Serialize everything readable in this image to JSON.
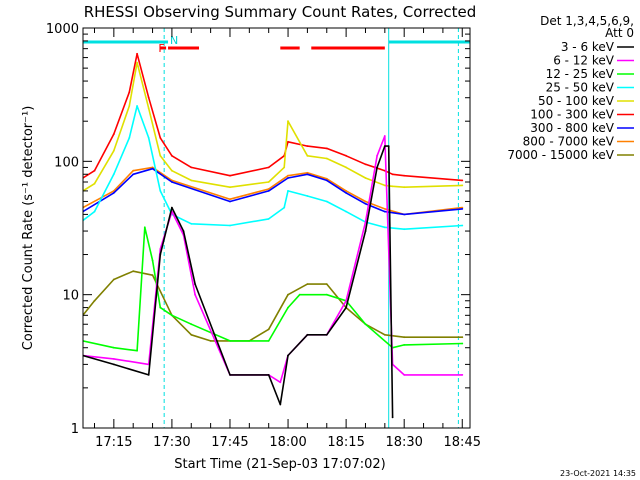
{
  "chart_data": {
    "type": "line",
    "title": "RHESSI Observing Summary Count Rates, Corrected",
    "xlabel": "Start Time (21-Sep-03 17:07:02)",
    "ylabel": "Corrected Count Rate (s⁻¹ detector⁻¹)",
    "ylim": [
      1,
      1000
    ],
    "yscale": "log",
    "xlim": [
      "17:07:02",
      "18:47:00"
    ],
    "x_tick_labels": [
      "17:15",
      "17:30",
      "17:45",
      "18:00",
      "18:15",
      "18:30",
      "18:45"
    ],
    "y_tick_labels": [
      "1",
      "10",
      "100",
      "1000"
    ],
    "legend_header": [
      "Det 1,3,4,5,6,9,",
      "Att 0"
    ],
    "legend_position": "right",
    "corner_date": "23-Oct-2021 14:35",
    "annotations": [
      {
        "text": "F",
        "color": "#ff0000"
      },
      {
        "text": "N",
        "color": "#00d0d0"
      }
    ],
    "series": [
      {
        "name": "3 - 6 keV",
        "color": "#000000",
        "x": [
          "17:07",
          "17:15",
          "17:24",
          "17:27",
          "17:30",
          "17:33",
          "17:36",
          "17:45",
          "17:55",
          "17:58",
          "18:00",
          "18:05",
          "18:10",
          "18:15",
          "18:20",
          "18:23",
          "18:25",
          "18:26",
          "18:27"
        ],
        "y": [
          3.5,
          3.0,
          2.5,
          20,
          45,
          30,
          12,
          2.5,
          2.5,
          1.5,
          3.5,
          5,
          5,
          8,
          30,
          90,
          130,
          130,
          1.2
        ]
      },
      {
        "name": "6 - 12 keV",
        "color": "#ff00ff",
        "x": [
          "17:07",
          "17:15",
          "17:24",
          "17:27",
          "17:30",
          "17:33",
          "17:36",
          "17:45",
          "17:55",
          "17:58",
          "18:00",
          "18:05",
          "18:10",
          "18:15",
          "18:20",
          "18:23",
          "18:25",
          "18:27",
          "18:30",
          "18:45"
        ],
        "y": [
          3.5,
          3.3,
          3.0,
          22,
          42,
          28,
          10,
          2.5,
          2.5,
          2.2,
          3.5,
          5,
          5,
          9,
          35,
          110,
          155,
          3,
          2.5,
          2.5
        ]
      },
      {
        "name": "12 - 25 keV",
        "color": "#00ff00",
        "x": [
          "17:07",
          "17:15",
          "17:21",
          "17:23",
          "17:25",
          "17:27",
          "17:30",
          "17:35",
          "17:45",
          "17:55",
          "18:00",
          "18:03",
          "18:10",
          "18:15",
          "18:20",
          "18:27",
          "18:30",
          "18:45"
        ],
        "y": [
          4.5,
          4.0,
          3.8,
          32,
          18,
          8,
          7,
          6,
          4.5,
          4.5,
          8,
          10,
          10,
          9,
          6,
          4,
          4.2,
          4.3
        ]
      },
      {
        "name": "25 - 50 keV",
        "color": "#00ffff",
        "x": [
          "17:07",
          "17:10",
          "17:15",
          "17:19",
          "17:21",
          "17:24",
          "17:27",
          "17:30",
          "17:35",
          "17:45",
          "17:55",
          "17:59",
          "18:00",
          "18:05",
          "18:10",
          "18:15",
          "18:20",
          "18:25",
          "18:30",
          "18:45"
        ],
        "y": [
          36,
          42,
          80,
          150,
          260,
          150,
          60,
          40,
          34,
          33,
          37,
          45,
          60,
          55,
          50,
          42,
          35,
          32,
          31,
          33
        ]
      },
      {
        "name": "50 - 100 keV",
        "color": "#e0e000",
        "x": [
          "17:07",
          "17:10",
          "17:15",
          "17:19",
          "17:21",
          "17:24",
          "17:27",
          "17:30",
          "17:35",
          "17:45",
          "17:55",
          "17:59",
          "18:00",
          "18:05",
          "18:10",
          "18:15",
          "18:20",
          "18:25",
          "18:27",
          "18:30",
          "18:45"
        ],
        "y": [
          60,
          68,
          120,
          260,
          550,
          250,
          110,
          85,
          72,
          64,
          70,
          90,
          200,
          110,
          105,
          90,
          75,
          66,
          65,
          64,
          66
        ]
      },
      {
        "name": "100 - 300 keV",
        "color": "#ff0000",
        "x": [
          "17:07",
          "17:10",
          "17:15",
          "17:19",
          "17:21",
          "17:24",
          "17:27",
          "17:30",
          "17:35",
          "17:45",
          "17:55",
          "17:59",
          "18:00",
          "18:05",
          "18:10",
          "18:15",
          "18:20",
          "18:25",
          "18:27",
          "18:30",
          "18:45"
        ],
        "y": [
          75,
          85,
          160,
          330,
          640,
          300,
          150,
          110,
          90,
          78,
          90,
          110,
          140,
          130,
          125,
          110,
          95,
          85,
          80,
          78,
          72
        ]
      },
      {
        "name": "300 - 800 keV",
        "color": "#0000ff",
        "x": [
          "17:07",
          "17:15",
          "17:20",
          "17:25",
          "17:30",
          "17:45",
          "17:55",
          "18:00",
          "18:05",
          "18:10",
          "18:15",
          "18:20",
          "18:25",
          "18:30",
          "18:45"
        ],
        "y": [
          42,
          58,
          80,
          88,
          70,
          50,
          60,
          75,
          80,
          72,
          58,
          48,
          42,
          40,
          44
        ]
      },
      {
        "name": "800 - 7000 keV",
        "color": "#ff8000",
        "x": [
          "17:07",
          "17:15",
          "17:20",
          "17:25",
          "17:30",
          "17:45",
          "17:55",
          "18:00",
          "18:05",
          "18:10",
          "18:15",
          "18:20",
          "18:25",
          "18:30",
          "18:45"
        ],
        "y": [
          45,
          60,
          85,
          90,
          72,
          52,
          62,
          78,
          82,
          74,
          60,
          50,
          44,
          40,
          45
        ]
      },
      {
        "name": "7000 - 15000 keV",
        "color": "#808000",
        "x": [
          "17:07",
          "17:10",
          "17:15",
          "17:20",
          "17:25",
          "17:30",
          "17:35",
          "17:40",
          "17:50",
          "17:55",
          "18:00",
          "18:05",
          "18:10",
          "18:15",
          "18:20",
          "18:25",
          "18:30",
          "18:45"
        ],
        "y": [
          7,
          9,
          13,
          15,
          14,
          7,
          5,
          4.5,
          4.5,
          5.5,
          10,
          12,
          12,
          8,
          6,
          5,
          4.8,
          4.8
        ]
      }
    ]
  }
}
